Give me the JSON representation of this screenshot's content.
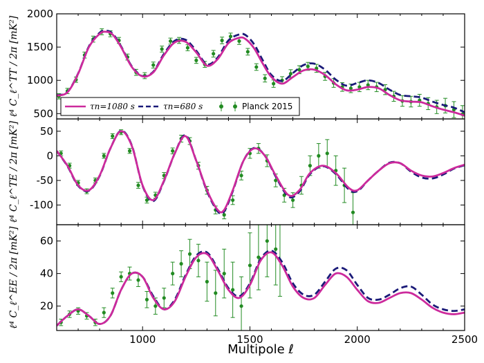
{
  "chart_data": [
    {
      "type": "line",
      "panel": "TT",
      "ylabel": "ℓ⁴ C_ℓ^TT / 2π  [mK²]",
      "xlim": [
        600,
        2500
      ],
      "ylim": [
        420,
        2000
      ],
      "yticks": [
        500,
        1000,
        1500,
        2000
      ],
      "series": [
        {
          "name": "τn=1080 s",
          "color": "#cc2a9c",
          "style": "solid",
          "x": [
            600,
            650,
            700,
            750,
            800,
            830,
            860,
            900,
            950,
            1000,
            1050,
            1100,
            1150,
            1200,
            1250,
            1300,
            1350,
            1400,
            1450,
            1480,
            1520,
            1560,
            1600,
            1650,
            1700,
            1750,
            1800,
            1850,
            1900,
            1950,
            2000,
            2050,
            2100,
            2150,
            2200,
            2250,
            2300,
            2350,
            2400,
            2450,
            2500
          ],
          "y": [
            770,
            820,
            1100,
            1500,
            1700,
            1730,
            1690,
            1500,
            1200,
            1060,
            1120,
            1380,
            1570,
            1580,
            1420,
            1220,
            1320,
            1560,
            1640,
            1620,
            1480,
            1250,
            1050,
            950,
            1050,
            1150,
            1160,
            1080,
            940,
            850,
            860,
            900,
            880,
            780,
            700,
            680,
            670,
            610,
            560,
            520,
            470
          ]
        },
        {
          "name": "τn=680 s",
          "color": "#1a1a78",
          "style": "dashed",
          "x": [
            600,
            650,
            700,
            750,
            800,
            830,
            860,
            900,
            950,
            1000,
            1050,
            1100,
            1150,
            1200,
            1250,
            1300,
            1350,
            1400,
            1450,
            1480,
            1520,
            1560,
            1600,
            1650,
            1700,
            1750,
            1800,
            1850,
            1900,
            1950,
            2000,
            2050,
            2100,
            2150,
            2200,
            2250,
            2300,
            2350,
            2400,
            2450,
            2500
          ],
          "y": [
            775,
            825,
            1105,
            1510,
            1715,
            1745,
            1705,
            1510,
            1210,
            1065,
            1130,
            1400,
            1595,
            1610,
            1445,
            1240,
            1345,
            1600,
            1690,
            1680,
            1540,
            1300,
            1080,
            990,
            1110,
            1230,
            1250,
            1160,
            1010,
            920,
            960,
            1000,
            960,
            860,
            780,
            760,
            740,
            680,
            630,
            590,
            520
          ]
        }
      ],
      "data_points": {
        "name": "Planck 2015",
        "color": "#228b22",
        "x": [
          610,
          650,
          690,
          730,
          770,
          810,
          850,
          890,
          930,
          970,
          1010,
          1050,
          1090,
          1130,
          1170,
          1210,
          1250,
          1290,
          1330,
          1370,
          1410,
          1450,
          1490,
          1530,
          1570,
          1610,
          1650,
          1690,
          1730,
          1770,
          1810,
          1850,
          1890,
          1930,
          1970,
          2010,
          2050,
          2090,
          2130,
          2170,
          2210,
          2250,
          2290,
          2330,
          2370,
          2410,
          2450,
          2490
        ],
        "y": [
          760,
          840,
          1010,
          1380,
          1620,
          1730,
          1700,
          1600,
          1350,
          1120,
          1070,
          1230,
          1470,
          1590,
          1600,
          1490,
          1300,
          1240,
          1400,
          1600,
          1660,
          1590,
          1430,
          1200,
          1030,
          950,
          1000,
          1100,
          1160,
          1210,
          1180,
          1060,
          960,
          900,
          880,
          900,
          930,
          900,
          860,
          760,
          690,
          680,
          700,
          650,
          600,
          620,
          560,
          490
        ],
        "err": [
          40,
          40,
          40,
          45,
          45,
          45,
          45,
          45,
          45,
          45,
          45,
          45,
          45,
          45,
          45,
          45,
          45,
          45,
          50,
          50,
          50,
          50,
          50,
          50,
          55,
          55,
          55,
          60,
          60,
          60,
          60,
          60,
          65,
          65,
          65,
          70,
          70,
          70,
          75,
          75,
          80,
          80,
          90,
          90,
          100,
          110,
          120,
          130
        ]
      },
      "legend": {
        "position": "bottom-left",
        "entries": [
          "τn=1080 s",
          "τn=680 s",
          "Planck 2015"
        ]
      }
    },
    {
      "type": "line",
      "panel": "TE",
      "ylabel": "ℓ⁴ C_ℓ^TE / 2π  [mK²]",
      "xlim": [
        600,
        2500
      ],
      "ylim": [
        -140,
        75
      ],
      "yticks": [
        -100,
        -50,
        0,
        50
      ],
      "series": [
        {
          "name": "τn=1080 s",
          "color": "#cc2a9c",
          "style": "solid",
          "x": [
            600,
            650,
            700,
            750,
            800,
            850,
            900,
            950,
            1000,
            1050,
            1100,
            1150,
            1200,
            1250,
            1300,
            1350,
            1380,
            1420,
            1470,
            1520,
            1570,
            1620,
            1680,
            1730,
            1780,
            1840,
            1900,
            1960,
            2000,
            2050,
            2100,
            2150,
            2200,
            2250,
            2300,
            2350,
            2400,
            2450,
            2500
          ],
          "y": [
            10,
            -20,
            -60,
            -70,
            -40,
            15,
            50,
            20,
            -60,
            -90,
            -50,
            5,
            40,
            -10,
            -70,
            -110,
            -110,
            -70,
            -10,
            15,
            0,
            -40,
            -80,
            -70,
            -35,
            -20,
            -35,
            -65,
            -70,
            -50,
            -30,
            -15,
            -15,
            -30,
            -40,
            -42,
            -35,
            -25,
            -18
          ]
        },
        {
          "name": "τn=680 s",
          "color": "#1a1a78",
          "style": "dashed",
          "x": [
            600,
            650,
            700,
            750,
            800,
            850,
            900,
            950,
            1000,
            1050,
            1100,
            1150,
            1200,
            1250,
            1300,
            1350,
            1380,
            1420,
            1470,
            1520,
            1570,
            1620,
            1680,
            1730,
            1780,
            1840,
            1900,
            1960,
            2000,
            2050,
            2100,
            2150,
            2200,
            2250,
            2300,
            2350,
            2400,
            2450,
            2500
          ],
          "y": [
            10,
            -21,
            -61,
            -71,
            -41,
            15,
            51,
            21,
            -61,
            -92,
            -51,
            5,
            42,
            -10,
            -72,
            -113,
            -113,
            -72,
            -10,
            16,
            0,
            -42,
            -83,
            -73,
            -37,
            -21,
            -37,
            -68,
            -72,
            -50,
            -30,
            -14,
            -15,
            -32,
            -44,
            -46,
            -38,
            -26,
            -19
          ]
        }
      ],
      "data_points": {
        "name": "Planck 2015",
        "color": "#228b22",
        "x": [
          620,
          660,
          700,
          740,
          780,
          820,
          860,
          900,
          940,
          980,
          1020,
          1060,
          1100,
          1140,
          1180,
          1220,
          1260,
          1300,
          1340,
          1380,
          1420,
          1460,
          1500,
          1540,
          1580,
          1620,
          1660,
          1700,
          1740,
          1780,
          1820,
          1860,
          1900,
          1940,
          1980
        ],
        "y": [
          5,
          -20,
          -55,
          -72,
          -50,
          0,
          40,
          48,
          10,
          -60,
          -90,
          -80,
          -40,
          10,
          35,
          30,
          -20,
          -70,
          -110,
          -120,
          -90,
          -40,
          5,
          15,
          -10,
          -50,
          -80,
          -90,
          -60,
          -20,
          0,
          5,
          -30,
          -60,
          -115
        ],
        "err": [
          5,
          5,
          5,
          5,
          5,
          5,
          5,
          5,
          5,
          6,
          6,
          6,
          6,
          6,
          7,
          7,
          7,
          8,
          8,
          8,
          9,
          9,
          10,
          10,
          12,
          13,
          14,
          15,
          18,
          20,
          25,
          28,
          30,
          35,
          40
        ]
      }
    },
    {
      "type": "line",
      "panel": "EE",
      "xlabel": "Multipole ℓ",
      "ylabel": "ℓ⁴ C_ℓ^EE / 2π  [mK²]",
      "xlim": [
        600,
        2500
      ],
      "ylim": [
        5,
        70
      ],
      "yticks": [
        20,
        40,
        60
      ],
      "xticks": [
        1000,
        1500,
        2000,
        2500
      ],
      "series": [
        {
          "name": "τn=1080 s",
          "color": "#cc2a9c",
          "style": "solid",
          "x": [
            600,
            650,
            700,
            750,
            800,
            850,
            900,
            950,
            1000,
            1050,
            1100,
            1150,
            1200,
            1250,
            1300,
            1350,
            1400,
            1450,
            1500,
            1550,
            1600,
            1650,
            1700,
            1750,
            1800,
            1850,
            1900,
            1950,
            2000,
            2050,
            2100,
            2150,
            2200,
            2250,
            2300,
            2350,
            2400,
            2450,
            2500
          ],
          "y": [
            8,
            14,
            18,
            14,
            9,
            14,
            30,
            40,
            38,
            25,
            18,
            23,
            38,
            50,
            52,
            42,
            30,
            25,
            33,
            48,
            53,
            45,
            32,
            25,
            25,
            33,
            40,
            38,
            30,
            23,
            22,
            25,
            28,
            28,
            24,
            19,
            16,
            15,
            16
          ]
        },
        {
          "name": "τn=680 s",
          "color": "#1a1a78",
          "style": "dashed",
          "x": [
            600,
            650,
            700,
            750,
            800,
            850,
            900,
            950,
            1000,
            1050,
            1100,
            1150,
            1200,
            1250,
            1300,
            1350,
            1400,
            1450,
            1500,
            1550,
            1600,
            1650,
            1700,
            1750,
            1800,
            1850,
            1900,
            1950,
            2000,
            2050,
            2100,
            2150,
            2200,
            2250,
            2300,
            2350,
            2400,
            2450,
            2500
          ],
          "y": [
            8,
            14,
            18,
            14,
            9,
            14,
            30,
            40,
            38,
            26,
            18,
            24,
            39,
            51,
            53,
            43,
            31,
            26,
            34,
            49,
            54,
            47,
            34,
            27,
            27,
            35,
            43,
            42,
            33,
            25,
            24,
            27,
            31,
            32,
            27,
            21,
            18,
            17,
            18
          ]
        }
      ],
      "data_points": {
        "name": "Planck 2015",
        "color": "#228b22",
        "x": [
          620,
          660,
          700,
          740,
          780,
          820,
          860,
          900,
          940,
          980,
          1020,
          1060,
          1100,
          1140,
          1180,
          1220,
          1260,
          1300,
          1340,
          1380,
          1420,
          1460,
          1500,
          1540,
          1580,
          1620,
          1640
        ],
        "y": [
          10,
          15,
          17,
          14,
          10,
          16,
          28,
          38,
          40,
          36,
          24,
          20,
          25,
          40,
          46,
          52,
          48,
          35,
          28,
          40,
          30,
          20,
          45,
          50,
          60,
          55,
          48
        ],
        "err": [
          2,
          2,
          2,
          2,
          2,
          3,
          3,
          3,
          4,
          4,
          5,
          5,
          6,
          7,
          8,
          9,
          10,
          12,
          14,
          15,
          17,
          18,
          20,
          20,
          22,
          22,
          22
        ]
      }
    }
  ]
}
